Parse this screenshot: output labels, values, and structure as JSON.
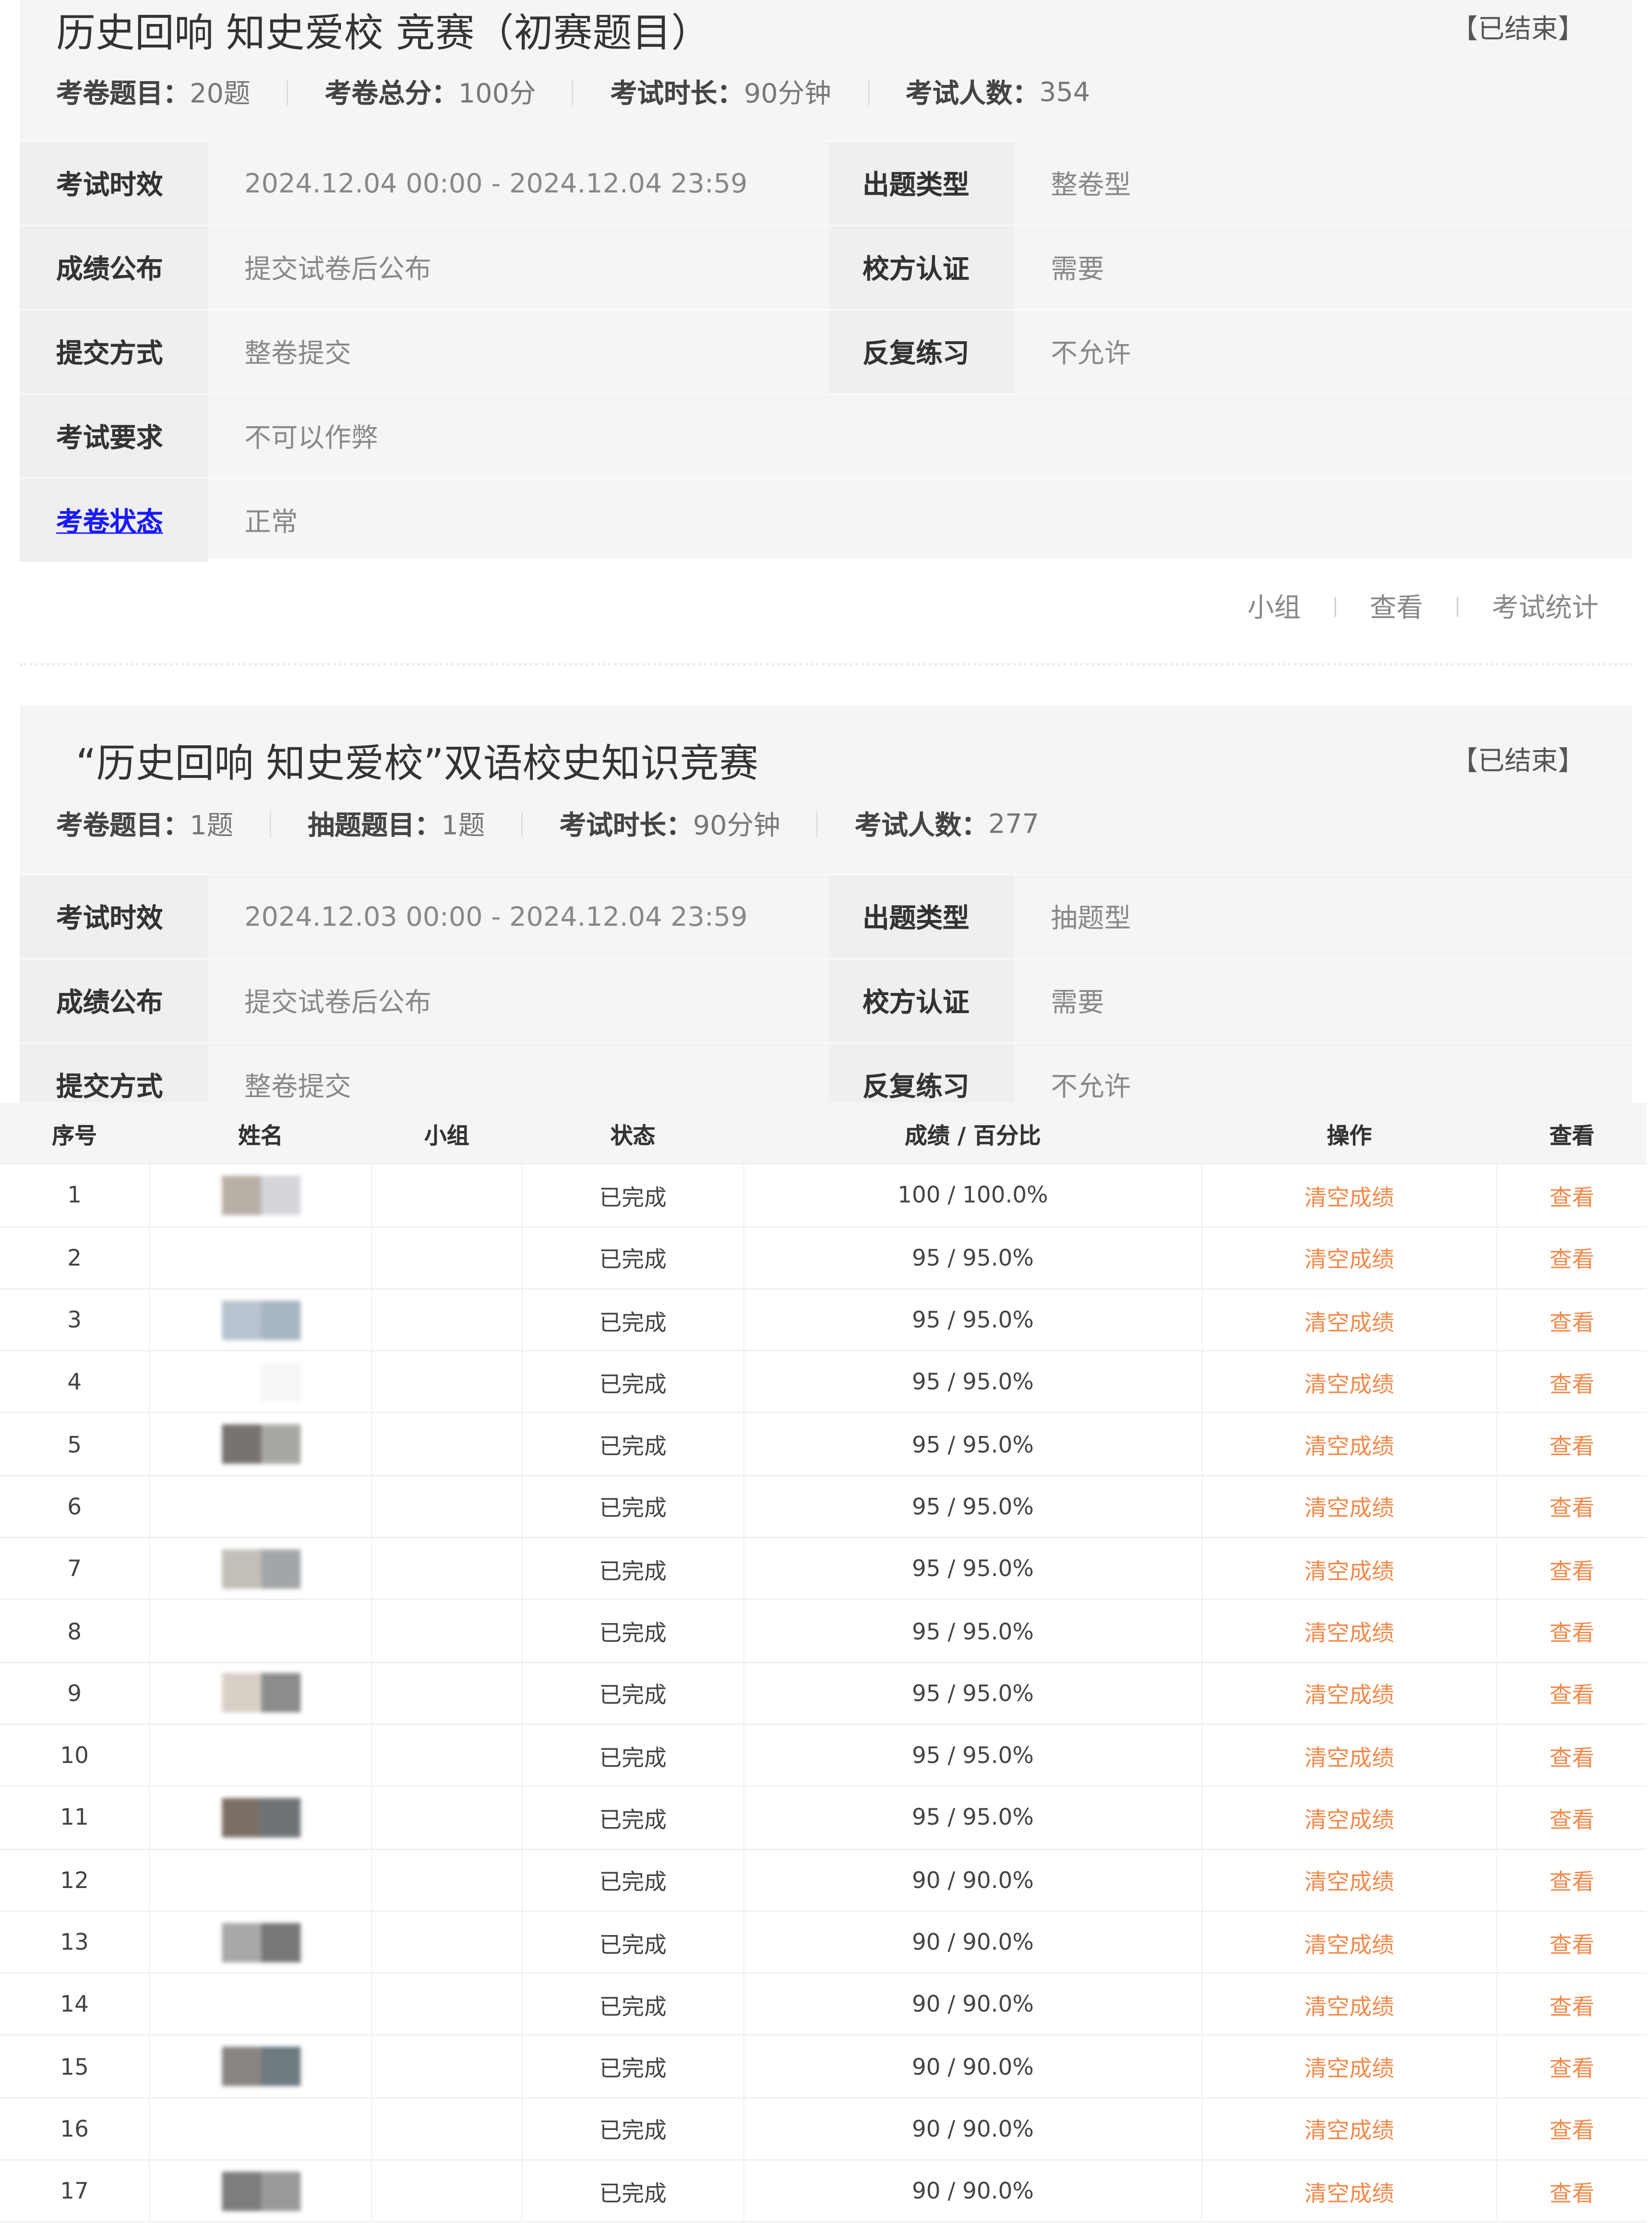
{
  "exams": [
    {
      "title": "历史回响 知史爱校 竞赛（初赛题目）",
      "status": "【已结束】",
      "stats": [
        {
          "label": "考卷题目：",
          "value": "20题"
        },
        {
          "label": "考卷总分：",
          "value": "100分"
        },
        {
          "label": "考试时长：",
          "value": "90分钟"
        },
        {
          "label": "考试人数：",
          "value": "354"
        }
      ],
      "info": {
        "time_label": "考试时效",
        "time": "2024.12.04 00:00 - 2024.12.04 23:59",
        "type_label": "出题类型",
        "type": "整卷型",
        "publish_label": "成绩公布",
        "publish": "提交试卷后公布",
        "auth_label": "校方认证",
        "auth": "需要",
        "submit_label": "提交方式",
        "submit": "整卷提交",
        "practice_label": "反复练习",
        "practice": "不允许",
        "req_label": "考试要求",
        "req": "不可以作弊",
        "paper_status_label": "考卷状态",
        "paper_status": "正常"
      },
      "actions": [
        "小组",
        "查看",
        "考试统计"
      ]
    },
    {
      "title": "“历史回响 知史爱校”双语校史知识竞赛",
      "status": "【已结束】",
      "stats": [
        {
          "label": "考卷题目：",
          "value": "1题"
        },
        {
          "label": "抽题题目：",
          "value": "1题"
        },
        {
          "label": "考试时长：",
          "value": "90分钟"
        },
        {
          "label": "考试人数：",
          "value": "277"
        }
      ],
      "info": {
        "time_label": "考试时效",
        "time": "2024.12.03 00:00 - 2024.12.04 23:59",
        "type_label": "出题类型",
        "type": "抽题型",
        "publish_label": "成绩公布",
        "publish": "提交试卷后公布",
        "auth_label": "校方认证",
        "auth": "需要",
        "submit_label": "提交方式",
        "submit": "整卷提交",
        "practice_label": "反复练习",
        "practice": "不允许"
      }
    }
  ],
  "table": {
    "headers": [
      "序号",
      "姓名",
      "小组",
      "状态",
      "成绩 / 百分比",
      "操作",
      "查看"
    ],
    "clear_label": "清空成绩",
    "view_label": "查看",
    "action_color": "#f5894a",
    "rows": [
      {
        "no": "1",
        "status": "已完成",
        "score": "100 / 100.0%"
      },
      {
        "no": "2",
        "status": "已完成",
        "score": "95 / 95.0%"
      },
      {
        "no": "3",
        "status": "已完成",
        "score": "95 / 95.0%"
      },
      {
        "no": "4",
        "status": "已完成",
        "score": "95 / 95.0%"
      },
      {
        "no": "5",
        "status": "已完成",
        "score": "95 / 95.0%"
      },
      {
        "no": "6",
        "status": "已完成",
        "score": "95 / 95.0%"
      },
      {
        "no": "7",
        "status": "已完成",
        "score": "95 / 95.0%"
      },
      {
        "no": "8",
        "status": "已完成",
        "score": "95 / 95.0%"
      },
      {
        "no": "9",
        "status": "已完成",
        "score": "95 / 95.0%"
      },
      {
        "no": "10",
        "status": "已完成",
        "score": "95 / 95.0%"
      },
      {
        "no": "11",
        "status": "已完成",
        "score": "95 / 95.0%"
      },
      {
        "no": "12",
        "status": "已完成",
        "score": "90 / 90.0%"
      },
      {
        "no": "13",
        "status": "已完成",
        "score": "90 / 90.0%"
      },
      {
        "no": "14",
        "status": "已完成",
        "score": "90 / 90.0%"
      },
      {
        "no": "15",
        "status": "已完成",
        "score": "90 / 90.0%"
      },
      {
        "no": "16",
        "status": "已完成",
        "score": "90 / 90.0%"
      },
      {
        "no": "17",
        "status": "已完成",
        "score": "90 / 90.0%"
      }
    ]
  }
}
